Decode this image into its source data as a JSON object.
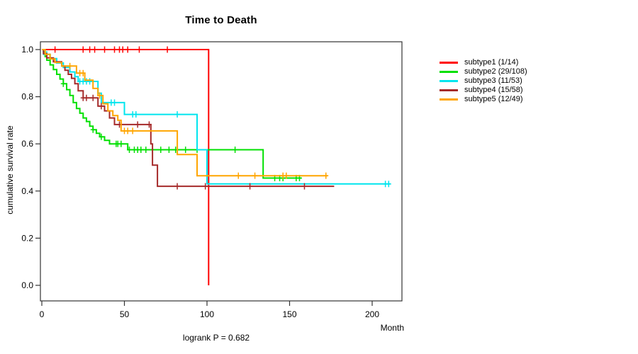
{
  "chart_data": {
    "type": "line",
    "subtype": "kaplan-meier-step-survival",
    "title": "Time to Death",
    "xlabel": "Month",
    "ylabel": "cumulative survival rate",
    "annotation": "logrank P = 0.682",
    "xlim": [
      0,
      218
    ],
    "ylim": [
      0.0,
      1.0
    ],
    "x_ticks": [
      0,
      50,
      100,
      150,
      200
    ],
    "y_ticks": [
      0.0,
      0.2,
      0.4,
      0.6,
      0.8,
      1.0
    ],
    "grid": false,
    "legend_position": "right-outside",
    "series": [
      {
        "name": "subtype1",
        "legend_label": "subtype1 (1/14)",
        "events_over_n": "1/14",
        "color": "#FF0000",
        "steps": [
          [
            0,
            1.0
          ],
          [
            101,
            1.0
          ],
          [
            101,
            0.0
          ]
        ],
        "censor_months": [
          8,
          25,
          29,
          32,
          38,
          44,
          47,
          49,
          52,
          59,
          76
        ]
      },
      {
        "name": "subtype2",
        "legend_label": "subtype2 (29/108)",
        "events_over_n": "29/108",
        "color": "#00E000",
        "steps": [
          [
            0,
            1.0
          ],
          [
            1,
            0.99
          ],
          [
            2,
            0.97
          ],
          [
            3,
            0.955
          ],
          [
            5,
            0.935
          ],
          [
            7,
            0.915
          ],
          [
            9,
            0.895
          ],
          [
            11,
            0.875
          ],
          [
            13,
            0.855
          ],
          [
            15,
            0.83
          ],
          [
            17,
            0.805
          ],
          [
            19,
            0.775
          ],
          [
            21,
            0.75
          ],
          [
            23,
            0.73
          ],
          [
            25,
            0.71
          ],
          [
            27,
            0.695
          ],
          [
            29,
            0.675
          ],
          [
            31,
            0.66
          ],
          [
            33,
            0.645
          ],
          [
            35,
            0.63
          ],
          [
            38,
            0.615
          ],
          [
            41,
            0.6
          ],
          [
            52,
            0.575
          ],
          [
            134,
            0.455
          ],
          [
            157,
            0.455
          ]
        ],
        "censor_months": [
          13,
          31,
          36,
          45,
          46,
          48,
          53,
          56,
          58,
          60,
          63,
          72,
          77,
          81,
          87,
          94,
          117,
          141,
          144,
          146,
          154,
          156
        ]
      },
      {
        "name": "subtype3",
        "legend_label": "subtype3 (11/53)",
        "events_over_n": "11/53",
        "color": "#00E5EE",
        "steps": [
          [
            0,
            1.0
          ],
          [
            1,
            0.98
          ],
          [
            5,
            0.962
          ],
          [
            9,
            0.943
          ],
          [
            13,
            0.924
          ],
          [
            17,
            0.905
          ],
          [
            20,
            0.885
          ],
          [
            22,
            0.865
          ],
          [
            34,
            0.815
          ],
          [
            36,
            0.775
          ],
          [
            50,
            0.725
          ],
          [
            94,
            0.575
          ],
          [
            100,
            0.43
          ],
          [
            211,
            0.43
          ]
        ],
        "censor_months": [
          3,
          23,
          25,
          27,
          29,
          42,
          44,
          55,
          57,
          82,
          208,
          210
        ]
      },
      {
        "name": "subtype4",
        "legend_label": "subtype4 (15/58)",
        "events_over_n": "15/58",
        "color": "#A52A2A",
        "steps": [
          [
            0,
            1.0
          ],
          [
            1,
            0.983
          ],
          [
            3,
            0.965
          ],
          [
            7,
            0.948
          ],
          [
            12,
            0.93
          ],
          [
            14,
            0.912
          ],
          [
            16,
            0.895
          ],
          [
            18,
            0.878
          ],
          [
            20,
            0.855
          ],
          [
            22,
            0.825
          ],
          [
            25,
            0.795
          ],
          [
            34,
            0.76
          ],
          [
            38,
            0.74
          ],
          [
            41,
            0.71
          ],
          [
            44,
            0.682
          ],
          [
            66,
            0.6
          ],
          [
            67,
            0.51
          ],
          [
            70,
            0.42
          ],
          [
            177,
            0.42
          ]
        ],
        "censor_months": [
          25,
          27,
          31,
          36,
          47,
          58,
          65,
          82,
          99,
          126,
          159
        ]
      },
      {
        "name": "subtype5",
        "legend_label": "subtype5 (12/49)",
        "events_over_n": "12/49",
        "color": "#FFA500",
        "steps": [
          [
            0,
            1.0
          ],
          [
            2,
            0.98
          ],
          [
            5,
            0.96
          ],
          [
            8,
            0.945
          ],
          [
            12,
            0.93
          ],
          [
            21,
            0.9
          ],
          [
            26,
            0.87
          ],
          [
            31,
            0.835
          ],
          [
            34,
            0.805
          ],
          [
            37,
            0.77
          ],
          [
            40,
            0.74
          ],
          [
            43,
            0.72
          ],
          [
            46,
            0.7
          ],
          [
            48,
            0.655
          ],
          [
            82,
            0.555
          ],
          [
            94,
            0.465
          ],
          [
            173,
            0.465
          ]
        ],
        "censor_months": [
          17,
          23,
          25,
          35,
          50,
          52,
          55,
          119,
          129,
          146,
          148,
          172
        ]
      }
    ]
  }
}
